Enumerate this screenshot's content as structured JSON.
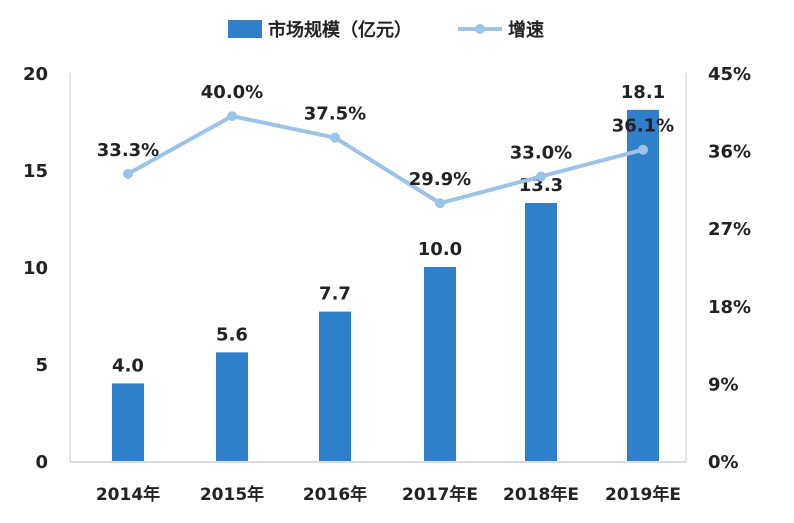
{
  "chart_data": {
    "type": "bar+line",
    "categories": [
      "2014年",
      "2015年",
      "2016年",
      "2017年E",
      "2018年E",
      "2019年E"
    ],
    "series": [
      {
        "name": "市场规模（亿元）",
        "type": "bar",
        "axis": "left",
        "values": [
          4.0,
          5.6,
          7.7,
          10.0,
          13.3,
          18.1
        ],
        "labels": [
          "4.0",
          "5.6",
          "7.7",
          "10.0",
          "13.3",
          "18.1"
        ],
        "color": "#2f7fcb"
      },
      {
        "name": "增速",
        "type": "line",
        "axis": "right",
        "values": [
          33.3,
          40.0,
          37.5,
          29.9,
          33.0,
          36.1
        ],
        "labels": [
          "33.3%",
          "40.0%",
          "37.5%",
          "29.9%",
          "33.0%",
          "36.1%"
        ],
        "color": "#9cc3e8"
      }
    ],
    "left_axis": {
      "ylim": [
        0,
        20
      ],
      "ticks": [
        "0",
        "5",
        "10",
        "15",
        "20"
      ]
    },
    "right_axis": {
      "ylim": [
        0,
        45
      ],
      "ticks": [
        "0%",
        "9%",
        "18%",
        "27%",
        "36%",
        "45%"
      ]
    },
    "grid": false,
    "legend": "top"
  }
}
